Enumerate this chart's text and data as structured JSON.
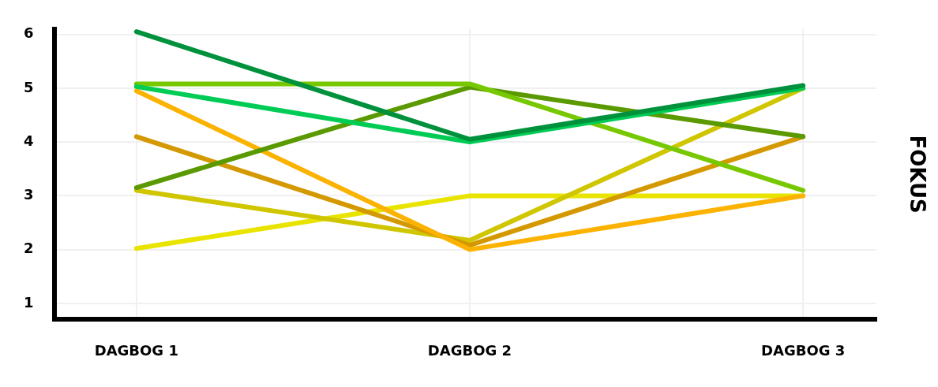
{
  "chart_data": {
    "type": "line",
    "ylabel": "FOKUS",
    "categories": [
      "DAGBOG 1",
      "DAGBOG 2",
      "DAGBOG 3"
    ],
    "series": [
      {
        "color": "#00913c",
        "values": [
          6.05,
          4.05,
          5.05
        ]
      },
      {
        "color": "#00cc55",
        "values": [
          5.03,
          4.0,
          5.0
        ]
      },
      {
        "color": "#77c800",
        "values": [
          5.08,
          5.08,
          3.1
        ]
      },
      {
        "color": "#5a9a00",
        "values": [
          3.15,
          5.02,
          4.1
        ]
      },
      {
        "color": "#fbb200",
        "values": [
          4.95,
          2.0,
          3.0
        ]
      },
      {
        "color": "#d49800",
        "values": [
          4.1,
          2.08,
          4.1
        ]
      },
      {
        "color": "#cfc600",
        "values": [
          3.1,
          2.17,
          5.0
        ]
      },
      {
        "color": "#e8e400",
        "values": [
          2.02,
          3.0,
          3.0
        ]
      }
    ],
    "ylim": [
      0.7,
      6.1
    ],
    "yticks": [
      1,
      2,
      3,
      4,
      5,
      6
    ],
    "grid": true,
    "legend": false,
    "marker": "none",
    "line_style": "solid"
  }
}
